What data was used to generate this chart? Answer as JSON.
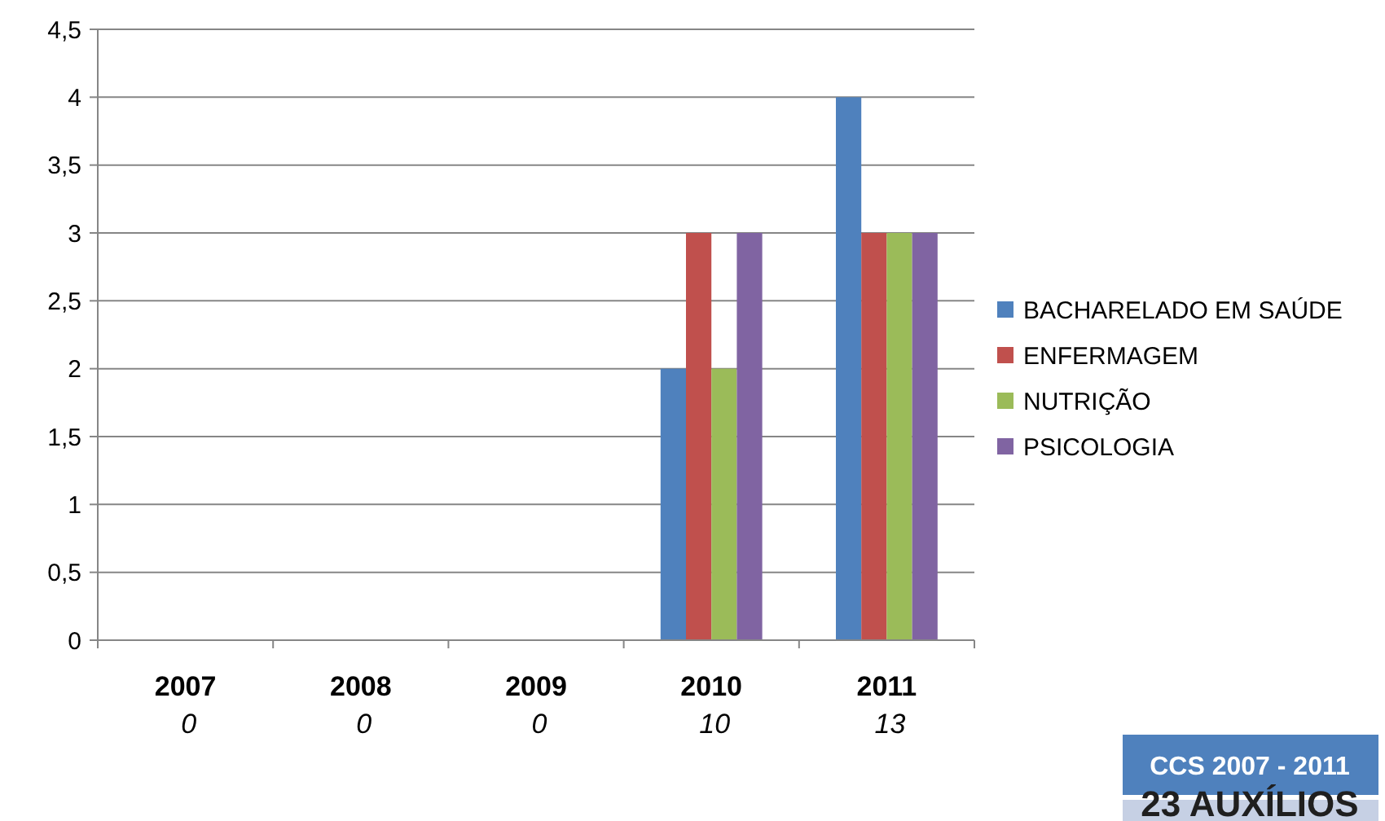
{
  "chart_data": {
    "type": "bar",
    "categories": [
      "2007",
      "2008",
      "2009",
      "2010",
      "2011"
    ],
    "series": [
      {
        "name": "BACHARELADO EM SAÚDE",
        "color": "#4f81bd",
        "values": [
          0,
          0,
          0,
          2,
          4
        ]
      },
      {
        "name": "ENFERMAGEM",
        "color": "#c0504d",
        "values": [
          0,
          0,
          0,
          3,
          3
        ]
      },
      {
        "name": "NUTRIÇÃO",
        "color": "#9bbb59",
        "values": [
          0,
          0,
          0,
          2,
          3
        ]
      },
      {
        "name": "PSICOLOGIA",
        "color": "#8064a2",
        "values": [
          0,
          0,
          0,
          3,
          3
        ]
      }
    ],
    "ylim": [
      0,
      4.5
    ],
    "yticks": [
      0,
      {
        "value": 0.5,
        "label": "0,5"
      },
      1,
      {
        "value": 1.5,
        "label": "1,5"
      },
      2,
      {
        "value": 2.5,
        "label": "2,5"
      },
      3,
      {
        "value": 3.5,
        "label": "3,5"
      },
      4,
      {
        "value": 4.5,
        "label": "4,5"
      }
    ],
    "grid": "y",
    "legend": "right",
    "totals": [
      "0",
      "0",
      "0",
      "10",
      "13"
    ],
    "annotations": [
      "CCS 2007 - 2011",
      "23 AUXÍLIOS"
    ]
  }
}
